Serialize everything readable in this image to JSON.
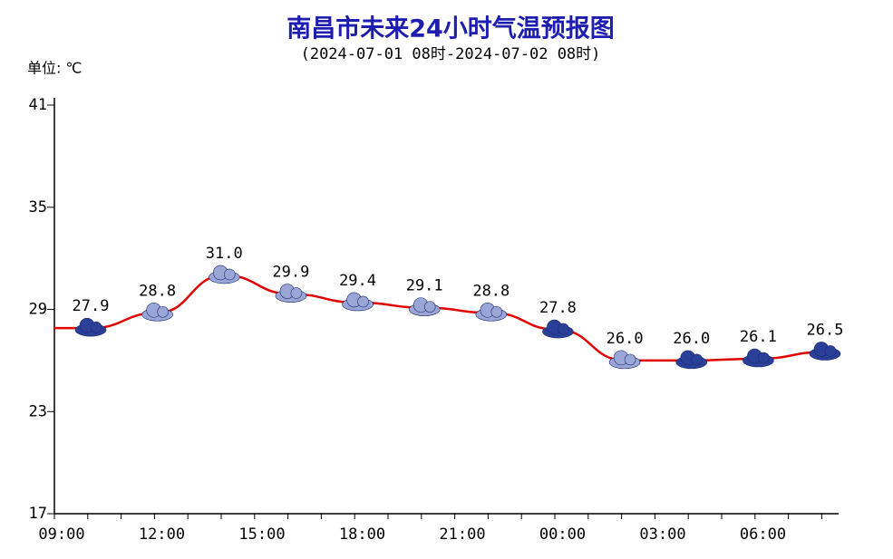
{
  "chart_data": {
    "type": "line",
    "title": "南昌市未来24小时气温预报图",
    "subtitle": "(2024-07-01 08时-2024-07-02 08时)",
    "y_label": "单位: ℃",
    "xticks": [
      "09:00",
      "12:00",
      "15:00",
      "18:00",
      "21:00",
      "00:00",
      "03:00",
      "06:00"
    ],
    "values": [
      27.9,
      28.8,
      31.0,
      29.9,
      29.4,
      29.1,
      28.8,
      27.8,
      26.0,
      26.0,
      26.1,
      26.5
    ],
    "value_labels": [
      "27.9",
      "28.8",
      "31.0",
      "29.9",
      "29.4",
      "29.1",
      "28.8",
      "27.8",
      "26.0",
      "26.0",
      "26.1",
      "26.5"
    ],
    "color": "#e00000",
    "ylim": [
      17,
      41
    ],
    "yticks": [
      17,
      23,
      29,
      35,
      41
    ]
  }
}
